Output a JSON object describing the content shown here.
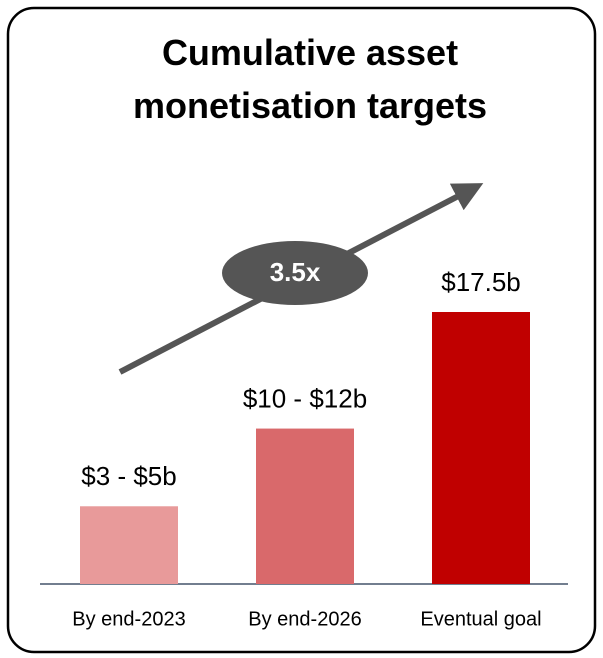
{
  "chart_data": {
    "type": "bar",
    "title": "Cumulative asset monetisation targets",
    "categories": [
      "By end-2023",
      "By end-2026",
      "Eventual goal"
    ],
    "values": [
      5,
      10,
      17.5
    ],
    "value_labels": [
      "$3 - $5b",
      "$10 - $12b",
      "$17.5b"
    ],
    "colors": [
      "#e89a9a",
      "#d9696b",
      "#c00000"
    ],
    "annotation": "3.5x"
  }
}
